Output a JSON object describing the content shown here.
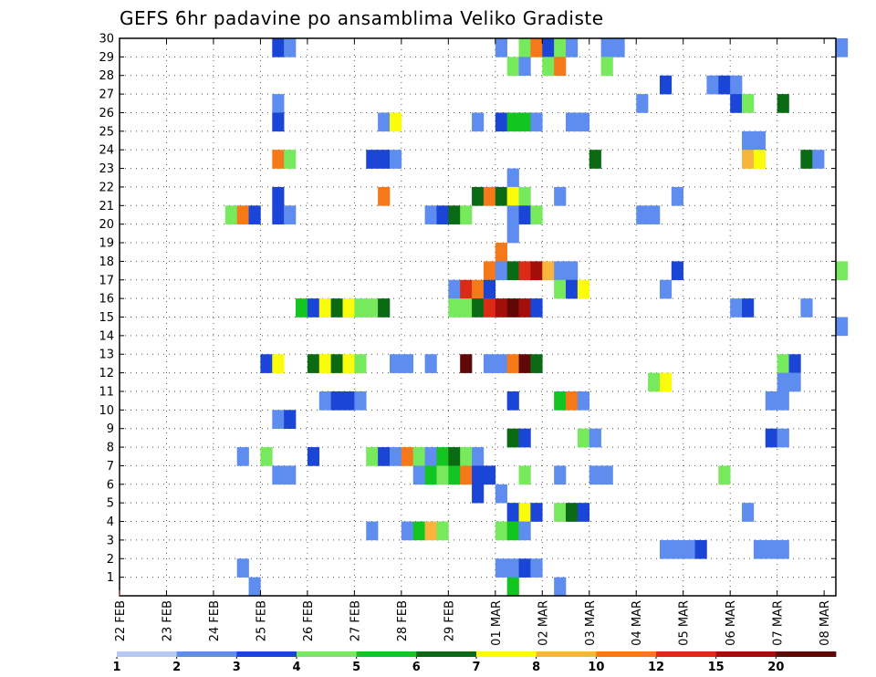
{
  "chart_data": {
    "type": "heatmap",
    "title": "GEFS 6hr padavine po ansamblima Veliko Gradiste",
    "xlabel": "",
    "ylabel": "",
    "x_ticks": [
      "22 FEB",
      "23 FEB",
      "24 FEB",
      "25 FEB",
      "26 FEB",
      "27 FEB",
      "28 FEB",
      "29 FEB",
      "01 MAR",
      "02 MAR",
      "03 MAR",
      "04 MAR",
      "05 MAR",
      "06 MAR",
      "07 MAR",
      "08 MAR"
    ],
    "y_ticks": [
      "1",
      "2",
      "3",
      "4",
      "5",
      "6",
      "7",
      "8",
      "9",
      "10",
      "11",
      "12",
      "13",
      "14",
      "15",
      "16",
      "17",
      "18",
      "19",
      "20",
      "21",
      "22",
      "23",
      "24",
      "25",
      "26",
      "27",
      "28",
      "29",
      "30"
    ],
    "x_unit": "6-hour step",
    "x_range": [
      0,
      61
    ],
    "y_range": [
      0,
      30
    ],
    "grid": true,
    "legend_position": "bottom",
    "legend_labels": [
      "1",
      "2",
      "3",
      "4",
      "5",
      "6",
      "7",
      "8",
      "10",
      "12",
      "15",
      "20"
    ],
    "legend_colors": [
      "#b7c8f5",
      "#5f8def",
      "#1a45d6",
      "#76e95c",
      "#13c520",
      "#0b6a14",
      "#fbfb0c",
      "#f8b43d",
      "#f57819",
      "#db2a15",
      "#a40e0a",
      "#600808"
    ],
    "cells": [
      [
        13,
        29,
        2
      ],
      [
        14,
        29,
        1
      ],
      [
        32,
        29,
        1
      ],
      [
        34,
        29,
        3
      ],
      [
        35,
        29,
        8
      ],
      [
        36,
        29,
        2
      ],
      [
        37,
        29,
        3
      ],
      [
        38,
        29,
        1
      ],
      [
        41,
        29,
        1
      ],
      [
        42,
        29,
        1
      ],
      [
        61,
        29,
        1
      ],
      [
        33,
        28,
        3
      ],
      [
        34,
        28,
        1
      ],
      [
        36,
        28,
        3
      ],
      [
        37,
        28,
        8
      ],
      [
        41,
        28,
        3
      ],
      [
        46,
        27,
        2
      ],
      [
        50,
        27,
        1
      ],
      [
        51,
        27,
        2
      ],
      [
        52,
        27,
        1
      ],
      [
        13,
        26,
        1
      ],
      [
        44,
        26,
        1
      ],
      [
        52,
        26,
        2
      ],
      [
        53,
        26,
        3
      ],
      [
        56,
        26,
        5
      ],
      [
        13,
        25,
        2
      ],
      [
        22,
        25,
        1
      ],
      [
        23,
        25,
        6
      ],
      [
        30,
        25,
        1
      ],
      [
        32,
        25,
        2
      ],
      [
        33,
        25,
        4
      ],
      [
        34,
        25,
        4
      ],
      [
        35,
        25,
        1
      ],
      [
        38,
        25,
        1
      ],
      [
        39,
        25,
        1
      ],
      [
        53,
        24,
        1
      ],
      [
        54,
        24,
        1
      ],
      [
        13,
        23,
        8
      ],
      [
        14,
        23,
        3
      ],
      [
        21,
        23,
        2
      ],
      [
        22,
        23,
        2
      ],
      [
        23,
        23,
        1
      ],
      [
        40,
        23,
        5
      ],
      [
        53,
        23,
        7
      ],
      [
        54,
        23,
        6
      ],
      [
        58,
        23,
        5
      ],
      [
        59,
        23,
        1
      ],
      [
        33,
        22,
        1
      ],
      [
        13,
        21,
        2
      ],
      [
        22,
        21,
        8
      ],
      [
        30,
        21,
        5
      ],
      [
        31,
        21,
        8
      ],
      [
        32,
        21,
        5
      ],
      [
        33,
        21,
        6
      ],
      [
        34,
        21,
        3
      ],
      [
        37,
        21,
        1
      ],
      [
        47,
        21,
        1
      ],
      [
        9,
        20,
        3
      ],
      [
        10,
        20,
        8
      ],
      [
        11,
        20,
        2
      ],
      [
        13,
        20,
        2
      ],
      [
        14,
        20,
        1
      ],
      [
        26,
        20,
        1
      ],
      [
        27,
        20,
        2
      ],
      [
        28,
        20,
        5
      ],
      [
        29,
        20,
        3
      ],
      [
        33,
        20,
        1
      ],
      [
        34,
        20,
        2
      ],
      [
        35,
        20,
        3
      ],
      [
        44,
        20,
        1
      ],
      [
        45,
        20,
        1
      ],
      [
        33,
        19,
        1
      ],
      [
        32,
        18,
        8
      ],
      [
        31,
        17,
        8
      ],
      [
        32,
        17,
        1
      ],
      [
        33,
        17,
        5
      ],
      [
        34,
        17,
        9
      ],
      [
        35,
        17,
        10
      ],
      [
        36,
        17,
        7
      ],
      [
        37,
        17,
        1
      ],
      [
        38,
        17,
        1
      ],
      [
        47,
        17,
        2
      ],
      [
        61,
        17,
        3
      ],
      [
        28,
        16,
        1
      ],
      [
        29,
        16,
        9
      ],
      [
        30,
        16,
        8
      ],
      [
        31,
        16,
        2
      ],
      [
        37,
        16,
        3
      ],
      [
        38,
        16,
        2
      ],
      [
        39,
        16,
        6
      ],
      [
        46,
        16,
        1
      ],
      [
        15,
        15,
        4
      ],
      [
        16,
        15,
        2
      ],
      [
        17,
        15,
        6
      ],
      [
        18,
        15,
        5
      ],
      [
        19,
        15,
        6
      ],
      [
        20,
        15,
        3
      ],
      [
        21,
        15,
        3
      ],
      [
        22,
        15,
        5
      ],
      [
        28,
        15,
        3
      ],
      [
        29,
        15,
        3
      ],
      [
        30,
        15,
        5
      ],
      [
        31,
        15,
        9
      ],
      [
        32,
        15,
        10
      ],
      [
        33,
        15,
        11
      ],
      [
        34,
        15,
        10
      ],
      [
        35,
        15,
        2
      ],
      [
        52,
        15,
        1
      ],
      [
        53,
        15,
        2
      ],
      [
        58,
        15,
        1
      ],
      [
        61,
        14,
        1
      ],
      [
        12,
        12,
        2
      ],
      [
        13,
        12,
        6
      ],
      [
        16,
        12,
        5
      ],
      [
        17,
        12,
        6
      ],
      [
        18,
        12,
        5
      ],
      [
        19,
        12,
        6
      ],
      [
        20,
        12,
        3
      ],
      [
        23,
        12,
        1
      ],
      [
        24,
        12,
        1
      ],
      [
        26,
        12,
        1
      ],
      [
        29,
        12,
        11
      ],
      [
        31,
        12,
        1
      ],
      [
        32,
        12,
        1
      ],
      [
        33,
        12,
        8
      ],
      [
        34,
        12,
        11
      ],
      [
        35,
        12,
        5
      ],
      [
        56,
        12,
        3
      ],
      [
        57,
        12,
        2
      ],
      [
        45,
        11,
        3
      ],
      [
        46,
        11,
        6
      ],
      [
        56,
        11,
        1
      ],
      [
        57,
        11,
        1
      ],
      [
        17,
        10,
        1
      ],
      [
        18,
        10,
        2
      ],
      [
        19,
        10,
        2
      ],
      [
        20,
        10,
        1
      ],
      [
        33,
        10,
        2
      ],
      [
        37,
        10,
        4
      ],
      [
        38,
        10,
        8
      ],
      [
        39,
        10,
        1
      ],
      [
        55,
        10,
        1
      ],
      [
        56,
        10,
        1
      ],
      [
        13,
        9,
        1
      ],
      [
        14,
        9,
        2
      ],
      [
        33,
        8,
        5
      ],
      [
        34,
        8,
        2
      ],
      [
        39,
        8,
        3
      ],
      [
        40,
        8,
        1
      ],
      [
        55,
        8,
        2
      ],
      [
        56,
        8,
        1
      ],
      [
        10,
        7,
        1
      ],
      [
        12,
        7,
        3
      ],
      [
        16,
        7,
        2
      ],
      [
        21,
        7,
        3
      ],
      [
        22,
        7,
        2
      ],
      [
        23,
        7,
        1
      ],
      [
        24,
        7,
        8
      ],
      [
        25,
        7,
        3
      ],
      [
        26,
        7,
        1
      ],
      [
        27,
        7,
        4
      ],
      [
        28,
        7,
        5
      ],
      [
        29,
        7,
        3
      ],
      [
        30,
        7,
        1
      ],
      [
        13,
        6,
        1
      ],
      [
        14,
        6,
        1
      ],
      [
        25,
        6,
        1
      ],
      [
        26,
        6,
        4
      ],
      [
        27,
        6,
        3
      ],
      [
        28,
        6,
        4
      ],
      [
        29,
        6,
        8
      ],
      [
        30,
        6,
        2
      ],
      [
        31,
        6,
        2
      ],
      [
        34,
        6,
        3
      ],
      [
        37,
        6,
        1
      ],
      [
        40,
        6,
        1
      ],
      [
        41,
        6,
        1
      ],
      [
        51,
        6,
        3
      ],
      [
        30,
        5,
        2
      ],
      [
        32,
        5,
        1
      ],
      [
        33,
        4,
        2
      ],
      [
        34,
        4,
        6
      ],
      [
        35,
        4,
        2
      ],
      [
        37,
        4,
        3
      ],
      [
        38,
        4,
        5
      ],
      [
        39,
        4,
        2
      ],
      [
        53,
        4,
        1
      ],
      [
        21,
        3,
        1
      ],
      [
        24,
        3,
        1
      ],
      [
        25,
        3,
        4
      ],
      [
        26,
        3,
        7
      ],
      [
        27,
        3,
        3
      ],
      [
        32,
        3,
        3
      ],
      [
        33,
        3,
        4
      ],
      [
        34,
        3,
        1
      ],
      [
        46,
        2,
        1
      ],
      [
        47,
        2,
        1
      ],
      [
        48,
        2,
        1
      ],
      [
        49,
        2,
        2
      ],
      [
        54,
        2,
        1
      ],
      [
        55,
        2,
        1
      ],
      [
        56,
        2,
        1
      ],
      [
        10,
        1,
        1
      ],
      [
        32,
        1,
        1
      ],
      [
        33,
        1,
        1
      ],
      [
        34,
        1,
        2
      ],
      [
        35,
        1,
        1
      ],
      [
        11,
        0,
        1
      ],
      [
        33,
        0,
        4
      ],
      [
        37,
        0,
        1
      ]
    ]
  }
}
